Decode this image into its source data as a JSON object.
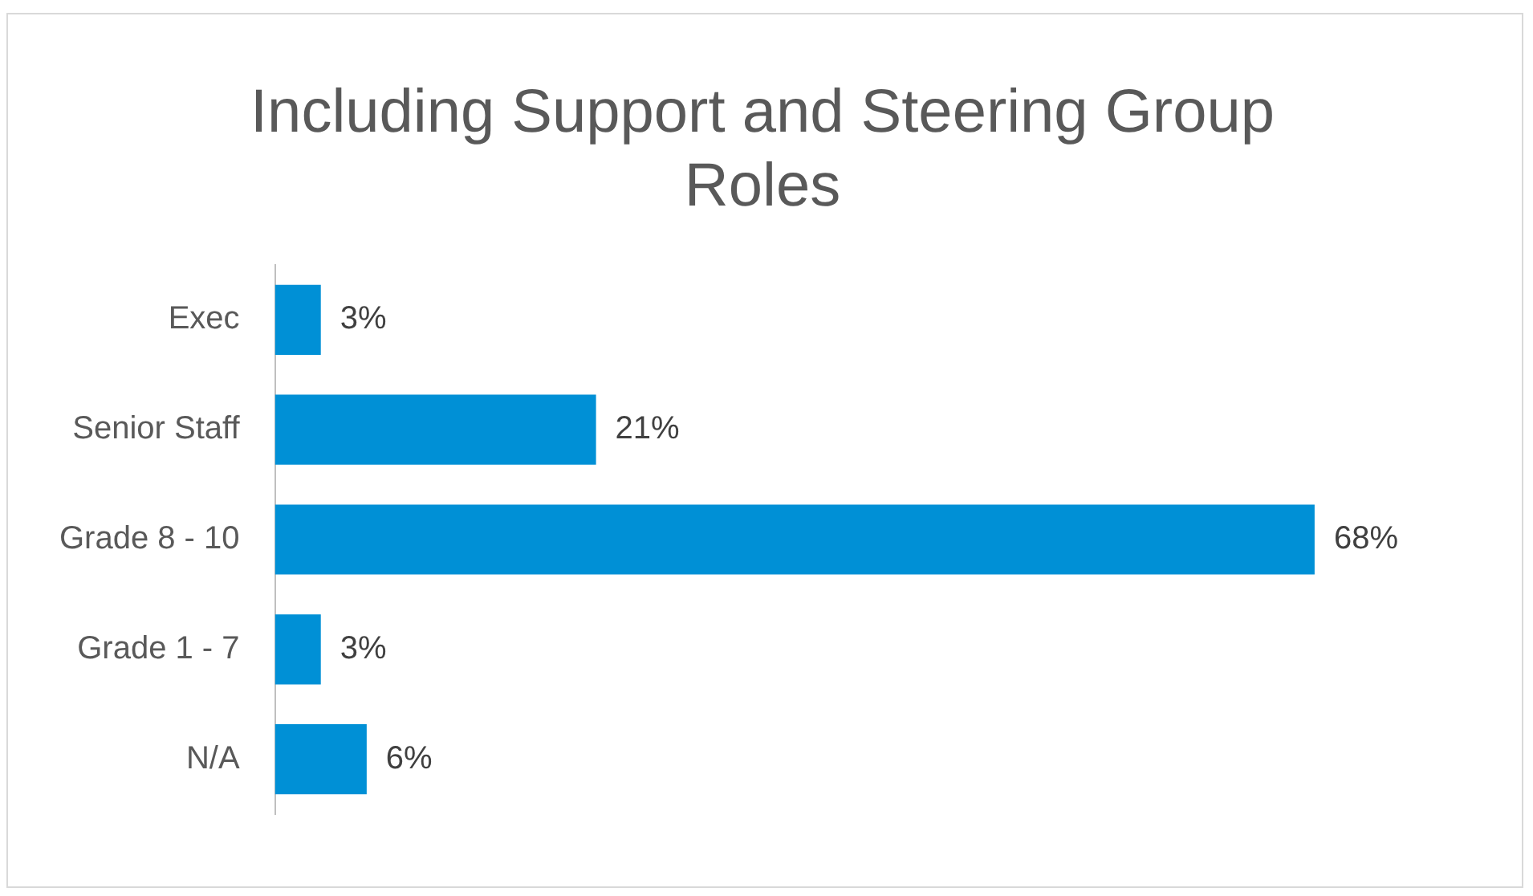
{
  "chart_data": {
    "type": "bar",
    "orientation": "horizontal",
    "title": "Including Support and Steering Group Roles",
    "categories": [
      "Exec",
      "Senior Staff",
      "Grade 8 - 10",
      "Grade 1 - 7",
      "N/A"
    ],
    "values": [
      3,
      21,
      68,
      3,
      6
    ],
    "color": "#0090d6",
    "value_labels": [
      "3%",
      "21%",
      "68%",
      "3%",
      "6%"
    ],
    "legend": false
  }
}
